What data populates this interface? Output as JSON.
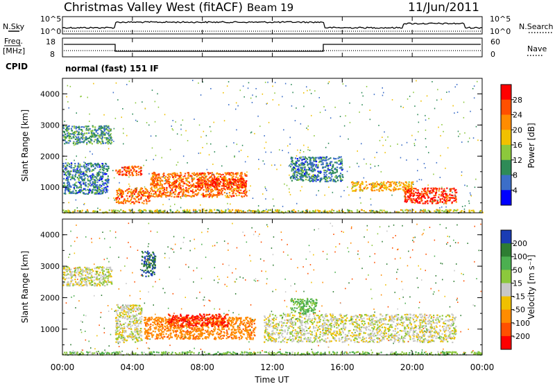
{
  "header": {
    "title": "Christmas Valley West (fitACF)",
    "beam": "Beam 19",
    "date": "11/Jun/2011"
  },
  "top_panels": {
    "nsky_label": "N.Sky",
    "nsearch_label": "N.Search",
    "nsky_ticks": [
      "10^5",
      "10^0"
    ],
    "nsearch_ticks": [
      "10^5",
      "10^0"
    ],
    "freq_label_line1": "Freq.",
    "freq_label_line2": "[MHz]",
    "freq_ticks": [
      "18",
      "8"
    ],
    "nave_label": "Nave",
    "nave_ticks": [
      "60",
      "0"
    ],
    "cpid_label": "CPID",
    "cpid_text": "normal (fast) 151 IF"
  },
  "power_panel": {
    "ylabel": "Slant Range [km]",
    "yticks": [
      "4000",
      "3000",
      "2000",
      "1000"
    ],
    "colorbar_label": "Power [dB]",
    "colorbar_ticks": [
      "28",
      "24",
      "20",
      "16",
      "12",
      "8",
      "4"
    ],
    "colors": [
      "#ff0000",
      "#ff5000",
      "#ff8c00",
      "#f0c000",
      "#8cc83c",
      "#2e8b57",
      "#3c6ec8",
      "#0000ff"
    ]
  },
  "velocity_panel": {
    "ylabel": "Slant Range [km]",
    "yticks": [
      "4000",
      "3000",
      "2000",
      "1000"
    ],
    "colorbar_label": "Velocity [m s⁻¹]",
    "colorbar_ticks": [
      "200",
      "100",
      "50",
      "15",
      "-15",
      "-50",
      "-100",
      "-200"
    ],
    "colors": [
      "#1a3cb4",
      "#2e7d32",
      "#4caf50",
      "#8cc83c",
      "#c8c8c8",
      "#f0c000",
      "#ff8c00",
      "#ff5000",
      "#ff0000"
    ]
  },
  "x_axis": {
    "ticks": [
      "00:00",
      "04:00",
      "08:00",
      "12:00",
      "16:00",
      "20:00",
      "00:00"
    ],
    "label": "Time UT"
  },
  "chart_data": [
    {
      "type": "line",
      "series": [
        {
          "name": "N.Sky",
          "x": [
            0,
            3,
            3.05,
            15,
            15.05,
            24
          ],
          "values": [
            1000,
            1000,
            5000,
            5000,
            1000,
            5000
          ]
        },
        {
          "name": "N.Search",
          "x": [
            0,
            24
          ],
          "values": [
            2,
            2
          ]
        }
      ],
      "ylim": [
        1,
        100000
      ],
      "xlim": [
        0,
        24
      ]
    },
    {
      "type": "line",
      "series": [
        {
          "name": "Freq.",
          "x": [
            0,
            3,
            3,
            15,
            15,
            24
          ],
          "values": [
            14,
            14,
            10,
            10,
            14,
            14
          ]
        },
        {
          "name": "Nave",
          "x": [
            0,
            24
          ],
          "values": [
            12,
            12
          ]
        }
      ],
      "ylim": [
        8,
        18
      ],
      "xlim": [
        0,
        24
      ]
    },
    {
      "type": "heatmap",
      "ylabel": "Slant Range [km]",
      "xlabel": "Time UT",
      "xlim": [
        0,
        24
      ],
      "ylim": [
        180,
        4500
      ],
      "colorbar": {
        "label": "Power [dB]",
        "ticks": [
          4,
          8,
          12,
          16,
          20,
          24,
          28
        ]
      },
      "regions": [
        {
          "t": [
            0,
            2.8
          ],
          "r": [
            2400,
            3000
          ],
          "value": 10
        },
        {
          "t": [
            0,
            2.6
          ],
          "r": [
            800,
            1800
          ],
          "value": 8
        },
        {
          "t": [
            3.0,
            4.5
          ],
          "r": [
            1400,
            1700
          ],
          "value": 26
        },
        {
          "t": [
            3.0,
            5.0
          ],
          "r": [
            500,
            1000
          ],
          "value": 24
        },
        {
          "t": [
            5.0,
            10.5
          ],
          "r": [
            700,
            1500
          ],
          "value": 24
        },
        {
          "t": [
            7.5,
            10.5
          ],
          "r": [
            1000,
            1300
          ],
          "value": 28
        },
        {
          "t": [
            13.0,
            16.0
          ],
          "r": [
            1200,
            2000
          ],
          "value": 8
        },
        {
          "t": [
            16.5,
            20.0
          ],
          "r": [
            900,
            1200
          ],
          "value": 20
        },
        {
          "t": [
            19.5,
            22.5
          ],
          "r": [
            500,
            1000
          ],
          "value": 28
        },
        {
          "t": [
            0,
            24
          ],
          "r": [
            200,
            300
          ],
          "value": 16
        }
      ]
    },
    {
      "type": "heatmap",
      "ylabel": "Slant Range [km]",
      "xlabel": "Time UT",
      "xlim": [
        0,
        24
      ],
      "ylim": [
        180,
        4500
      ],
      "colorbar": {
        "label": "Velocity [m s⁻¹]",
        "ticks": [
          -200,
          -100,
          -50,
          -15,
          15,
          50,
          100,
          200
        ]
      },
      "regions": [
        {
          "t": [
            0,
            2.8
          ],
          "r": [
            2400,
            3000
          ],
          "value": 0
        },
        {
          "t": [
            3.0,
            4.5
          ],
          "r": [
            600,
            1800
          ],
          "value": 0
        },
        {
          "t": [
            4.6,
            11.0
          ],
          "r": [
            700,
            1400
          ],
          "value": -80
        },
        {
          "t": [
            6.0,
            9.5
          ],
          "r": [
            1100,
            1500
          ],
          "value": -200
        },
        {
          "t": [
            4.5,
            5.3
          ],
          "r": [
            2700,
            3500
          ],
          "value": 200
        },
        {
          "t": [
            11.5,
            22.5
          ],
          "r": [
            600,
            1500
          ],
          "value": 0
        },
        {
          "t": [
            13.0,
            14.5
          ],
          "r": [
            1500,
            2000
          ],
          "value": 60
        },
        {
          "t": [
            0,
            24
          ],
          "r": [
            200,
            300
          ],
          "value": 40
        }
      ]
    }
  ]
}
